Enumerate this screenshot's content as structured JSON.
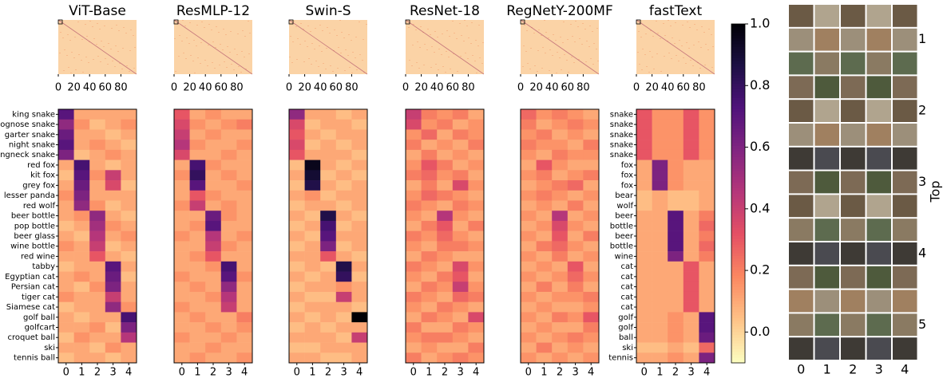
{
  "chart_data": [
    {
      "type": "heatmap",
      "title": "ViT-Base",
      "xticks": [
        0,
        20,
        40,
        60,
        80
      ],
      "xlim": [
        0,
        100
      ],
      "categories": [
        0,
        1,
        2,
        3,
        4
      ],
      "rows": [
        "king snake",
        "hognose snake",
        "garter snake",
        "night snake",
        "ringneck snake",
        "red fox",
        "kit fox",
        "grey fox",
        "lesser panda",
        "red wolf",
        "beer bottle",
        "pop bottle",
        "beer glass",
        "wine bottle",
        "red wine",
        "tabby",
        "Egyptian cat",
        "Persian cat",
        "tiger cat",
        "Siamese cat",
        "golf ball",
        "golfcart",
        "croquet ball",
        "ski",
        "tennis ball"
      ],
      "values": [
        [
          0.7,
          0.1,
          0.1,
          0.1,
          0.1
        ],
        [
          0.55,
          0.15,
          0.05,
          0.1,
          0.15
        ],
        [
          0.65,
          0.1,
          0.1,
          0.05,
          0.1
        ],
        [
          0.7,
          0.1,
          0.15,
          0.1,
          0.05
        ],
        [
          0.6,
          0.05,
          0.1,
          0.15,
          0.1
        ],
        [
          0.1,
          0.75,
          0.1,
          0.05,
          0.1
        ],
        [
          0.05,
          0.7,
          0.15,
          0.4,
          0.1
        ],
        [
          0.1,
          0.65,
          0.1,
          0.35,
          0.05
        ],
        [
          0.15,
          0.6,
          0.1,
          0.1,
          0.1
        ],
        [
          0.1,
          0.55,
          0.15,
          0.05,
          0.1
        ],
        [
          0.1,
          0.15,
          0.55,
          0.1,
          0.05
        ],
        [
          0.05,
          0.1,
          0.5,
          0.15,
          0.1
        ],
        [
          0.1,
          0.05,
          0.45,
          0.1,
          0.15
        ],
        [
          0.15,
          0.1,
          0.4,
          0.05,
          0.1
        ],
        [
          0.1,
          0.1,
          0.3,
          0.1,
          0.05
        ],
        [
          0.05,
          0.1,
          0.1,
          0.7,
          0.1
        ],
        [
          0.1,
          0.15,
          0.1,
          0.65,
          0.05
        ],
        [
          0.1,
          0.05,
          0.15,
          0.6,
          0.1
        ],
        [
          0.15,
          0.1,
          0.1,
          0.4,
          0.1
        ],
        [
          0.05,
          0.1,
          0.1,
          0.55,
          0.15
        ],
        [
          0.1,
          0.05,
          0.1,
          0.1,
          0.75
        ],
        [
          0.1,
          0.1,
          0.15,
          0.05,
          0.6
        ],
        [
          0.05,
          0.15,
          0.1,
          0.1,
          0.45
        ],
        [
          0.1,
          0.1,
          0.05,
          0.15,
          0.1
        ],
        [
          0.05,
          0.1,
          0.1,
          0.05,
          0.1
        ]
      ]
    },
    {
      "type": "heatmap",
      "title": "ResMLP-12",
      "xticks": [
        0,
        20,
        40,
        60,
        80
      ],
      "xlim": [
        0,
        100
      ],
      "categories": [
        0,
        1,
        2,
        3,
        4
      ],
      "values": [
        [
          0.3,
          0.1,
          0.15,
          0.1,
          0.1
        ],
        [
          0.35,
          0.15,
          0.1,
          0.15,
          0.2
        ],
        [
          0.4,
          0.1,
          0.15,
          0.1,
          0.1
        ],
        [
          0.45,
          0.15,
          0.1,
          0.1,
          0.15
        ],
        [
          0.35,
          0.1,
          0.1,
          0.15,
          0.1
        ],
        [
          0.1,
          0.75,
          0.15,
          0.1,
          0.1
        ],
        [
          0.15,
          0.8,
          0.1,
          0.15,
          0.1
        ],
        [
          0.1,
          0.7,
          0.1,
          0.1,
          0.15
        ],
        [
          0.1,
          0.3,
          0.15,
          0.1,
          0.1
        ],
        [
          0.15,
          0.4,
          0.1,
          0.15,
          0.1
        ],
        [
          0.1,
          0.1,
          0.65,
          0.15,
          0.1
        ],
        [
          0.1,
          0.15,
          0.7,
          0.1,
          0.1
        ],
        [
          0.15,
          0.1,
          0.45,
          0.1,
          0.15
        ],
        [
          0.1,
          0.1,
          0.4,
          0.15,
          0.1
        ],
        [
          0.1,
          0.15,
          0.3,
          0.1,
          0.1
        ],
        [
          0.1,
          0.1,
          0.15,
          0.75,
          0.1
        ],
        [
          0.15,
          0.1,
          0.1,
          0.7,
          0.15
        ],
        [
          0.1,
          0.15,
          0.1,
          0.55,
          0.1
        ],
        [
          0.1,
          0.1,
          0.15,
          0.45,
          0.1
        ],
        [
          0.15,
          0.1,
          0.1,
          0.4,
          0.1
        ],
        [
          0.1,
          0.15,
          0.1,
          0.1,
          0.2
        ],
        [
          0.1,
          0.1,
          0.15,
          0.1,
          0.15
        ],
        [
          0.15,
          0.1,
          0.1,
          0.15,
          0.1
        ],
        [
          0.1,
          0.1,
          0.15,
          0.1,
          0.1
        ],
        [
          0.1,
          0.15,
          0.1,
          0.1,
          0.15
        ]
      ]
    },
    {
      "type": "heatmap",
      "title": "Swin-S",
      "xticks": [
        0,
        20,
        40,
        60,
        80
      ],
      "xlim": [
        0,
        100
      ],
      "categories": [
        0,
        1,
        2,
        3,
        4
      ],
      "values": [
        [
          0.55,
          0.1,
          0.1,
          0.05,
          0.1
        ],
        [
          0.35,
          0.05,
          0.1,
          0.1,
          0.05
        ],
        [
          0.3,
          0.1,
          0.05,
          0.1,
          0.1
        ],
        [
          0.35,
          0.05,
          0.1,
          0.05,
          0.1
        ],
        [
          0.3,
          0.1,
          0.1,
          0.1,
          0.05
        ],
        [
          0.05,
          0.95,
          0.1,
          0.05,
          0.1
        ],
        [
          0.1,
          0.9,
          0.05,
          0.1,
          0.05
        ],
        [
          0.05,
          0.85,
          0.1,
          0.05,
          0.1
        ],
        [
          0.1,
          0.15,
          0.05,
          0.1,
          0.1
        ],
        [
          0.05,
          0.1,
          0.1,
          0.05,
          0.1
        ],
        [
          0.1,
          0.05,
          0.85,
          0.1,
          0.05
        ],
        [
          0.05,
          0.1,
          0.75,
          0.05,
          0.1
        ],
        [
          0.1,
          0.05,
          0.7,
          0.1,
          0.1
        ],
        [
          0.05,
          0.1,
          0.6,
          0.05,
          0.1
        ],
        [
          0.1,
          0.1,
          0.3,
          0.1,
          0.05
        ],
        [
          0.05,
          0.1,
          0.05,
          0.85,
          0.1
        ],
        [
          0.1,
          0.05,
          0.1,
          0.8,
          0.05
        ],
        [
          0.05,
          0.1,
          0.1,
          0.15,
          0.1
        ],
        [
          0.1,
          0.05,
          0.05,
          0.4,
          0.1
        ],
        [
          0.05,
          0.1,
          0.1,
          0.1,
          0.05
        ],
        [
          0.1,
          0.05,
          0.1,
          0.05,
          1.0
        ],
        [
          0.05,
          0.1,
          0.05,
          0.1,
          0.1
        ],
        [
          0.1,
          0.1,
          0.1,
          0.05,
          0.4
        ],
        [
          0.05,
          0.05,
          0.1,
          0.1,
          0.1
        ],
        [
          0.1,
          0.1,
          0.05,
          0.05,
          0.1
        ]
      ]
    },
    {
      "type": "heatmap",
      "title": "ResNet-18",
      "xticks": [
        0,
        20,
        40,
        60,
        80
      ],
      "xlim": [
        0,
        100
      ],
      "categories": [
        0,
        1,
        2,
        3,
        4
      ],
      "values": [
        [
          0.4,
          0.2,
          0.15,
          0.2,
          0.1
        ],
        [
          0.35,
          0.15,
          0.2,
          0.1,
          0.15
        ],
        [
          0.15,
          0.25,
          0.1,
          0.2,
          0.15
        ],
        [
          0.2,
          0.1,
          0.15,
          0.1,
          0.2
        ],
        [
          0.1,
          0.2,
          0.1,
          0.15,
          0.1
        ],
        [
          0.15,
          0.3,
          0.2,
          0.1,
          0.15
        ],
        [
          0.2,
          0.25,
          0.15,
          0.2,
          0.1
        ],
        [
          0.1,
          0.2,
          0.1,
          0.35,
          0.15
        ],
        [
          0.15,
          0.25,
          0.2,
          0.15,
          0.1
        ],
        [
          0.2,
          0.15,
          0.1,
          0.2,
          0.15
        ],
        [
          0.15,
          0.1,
          0.45,
          0.15,
          0.1
        ],
        [
          0.1,
          0.2,
          0.3,
          0.1,
          0.2
        ],
        [
          0.2,
          0.15,
          0.25,
          0.15,
          0.1
        ],
        [
          0.15,
          0.1,
          0.2,
          0.2,
          0.15
        ],
        [
          0.1,
          0.2,
          0.15,
          0.1,
          0.1
        ],
        [
          0.2,
          0.15,
          0.1,
          0.35,
          0.15
        ],
        [
          0.15,
          0.1,
          0.2,
          0.3,
          0.1
        ],
        [
          0.1,
          0.2,
          0.15,
          0.4,
          0.15
        ],
        [
          0.2,
          0.15,
          0.1,
          0.25,
          0.2
        ],
        [
          0.15,
          0.1,
          0.2,
          0.15,
          0.1
        ],
        [
          0.1,
          0.2,
          0.15,
          0.1,
          0.35
        ],
        [
          0.2,
          0.1,
          0.1,
          0.2,
          0.15
        ],
        [
          0.15,
          0.2,
          0.2,
          0.15,
          0.1
        ],
        [
          0.1,
          0.15,
          0.1,
          0.1,
          0.2
        ],
        [
          0.2,
          0.1,
          0.15,
          0.2,
          0.15
        ]
      ]
    },
    {
      "type": "heatmap",
      "title": "RegNetY-200MF",
      "xticks": [
        0,
        20,
        40,
        60,
        80
      ],
      "xlim": [
        0,
        100
      ],
      "categories": [
        0,
        1,
        2,
        3,
        4
      ],
      "values": [
        [
          0.25,
          0.15,
          0.2,
          0.15,
          0.1
        ],
        [
          0.2,
          0.1,
          0.15,
          0.2,
          0.15
        ],
        [
          0.15,
          0.2,
          0.1,
          0.15,
          0.1
        ],
        [
          0.2,
          0.15,
          0.15,
          0.1,
          0.2
        ],
        [
          0.15,
          0.1,
          0.2,
          0.15,
          0.15
        ],
        [
          0.1,
          0.3,
          0.15,
          0.1,
          0.1
        ],
        [
          0.15,
          0.2,
          0.1,
          0.15,
          0.2
        ],
        [
          0.1,
          0.15,
          0.2,
          0.25,
          0.1
        ],
        [
          0.15,
          0.2,
          0.15,
          0.1,
          0.15
        ],
        [
          0.1,
          0.15,
          0.1,
          0.2,
          0.1
        ],
        [
          0.15,
          0.1,
          0.45,
          0.1,
          0.15
        ],
        [
          0.1,
          0.15,
          0.35,
          0.15,
          0.1
        ],
        [
          0.15,
          0.1,
          0.3,
          0.1,
          0.2
        ],
        [
          0.1,
          0.2,
          0.25,
          0.15,
          0.1
        ],
        [
          0.15,
          0.1,
          0.2,
          0.1,
          0.15
        ],
        [
          0.1,
          0.15,
          0.1,
          0.3,
          0.1
        ],
        [
          0.15,
          0.1,
          0.15,
          0.25,
          0.15
        ],
        [
          0.1,
          0.2,
          0.1,
          0.2,
          0.1
        ],
        [
          0.15,
          0.1,
          0.15,
          0.15,
          0.2
        ],
        [
          0.1,
          0.15,
          0.1,
          0.1,
          0.15
        ],
        [
          0.15,
          0.1,
          0.2,
          0.15,
          0.3
        ],
        [
          0.1,
          0.15,
          0.1,
          0.1,
          0.2
        ],
        [
          0.15,
          0.1,
          0.15,
          0.2,
          0.15
        ],
        [
          0.1,
          0.2,
          0.1,
          0.15,
          0.1
        ],
        [
          0.15,
          0.1,
          0.15,
          0.1,
          0.15
        ]
      ]
    },
    {
      "type": "heatmap",
      "title": "fastText",
      "xticks": [
        0,
        20,
        40,
        60,
        80
      ],
      "xlim": [
        0,
        100
      ],
      "categories": [
        0,
        1,
        2,
        3,
        4
      ],
      "rows": [
        "snake",
        "snake",
        "snake",
        "snake",
        "snake",
        "fox",
        "fox",
        "fox",
        "bear",
        "wolf",
        "beer",
        "bottle",
        "beer",
        "bottle",
        "wine",
        "cat",
        "cat",
        "cat",
        "cat",
        "cat",
        "golf",
        "golf",
        "ball",
        "ski",
        "tennis"
      ],
      "values": [
        [
          0.3,
          0.15,
          0.15,
          0.3,
          0.15
        ],
        [
          0.3,
          0.15,
          0.15,
          0.3,
          0.15
        ],
        [
          0.3,
          0.15,
          0.15,
          0.3,
          0.15
        ],
        [
          0.3,
          0.15,
          0.15,
          0.3,
          0.15
        ],
        [
          0.3,
          0.15,
          0.15,
          0.3,
          0.15
        ],
        [
          0.1,
          0.6,
          0.15,
          0.1,
          0.1
        ],
        [
          0.1,
          0.6,
          0.15,
          0.1,
          0.1
        ],
        [
          0.1,
          0.6,
          0.15,
          0.1,
          0.1
        ],
        [
          0.05,
          0.1,
          0.05,
          0.05,
          0.1
        ],
        [
          0.05,
          0.1,
          0.05,
          0.05,
          0.1
        ],
        [
          0.1,
          0.1,
          0.7,
          0.1,
          0.2
        ],
        [
          0.1,
          0.1,
          0.7,
          0.1,
          0.25
        ],
        [
          0.1,
          0.1,
          0.7,
          0.1,
          0.2
        ],
        [
          0.1,
          0.1,
          0.7,
          0.1,
          0.25
        ],
        [
          0.1,
          0.1,
          0.6,
          0.1,
          0.2
        ],
        [
          0.1,
          0.1,
          0.1,
          0.3,
          0.1
        ],
        [
          0.1,
          0.1,
          0.1,
          0.3,
          0.1
        ],
        [
          0.1,
          0.1,
          0.1,
          0.3,
          0.1
        ],
        [
          0.1,
          0.1,
          0.1,
          0.3,
          0.1
        ],
        [
          0.1,
          0.1,
          0.1,
          0.3,
          0.1
        ],
        [
          0.1,
          0.1,
          0.15,
          0.1,
          0.7
        ],
        [
          0.1,
          0.1,
          0.15,
          0.1,
          0.7
        ],
        [
          0.1,
          0.1,
          0.15,
          0.1,
          0.65
        ],
        [
          0.05,
          0.05,
          0.1,
          0.05,
          0.25
        ],
        [
          0.1,
          0.1,
          0.15,
          0.1,
          0.6
        ]
      ]
    }
  ],
  "colorbar": {
    "colormap": "magma_r",
    "clim": [
      -0.1,
      1.0
    ],
    "ticks": [
      {
        "value": 0,
        "label": "0.0"
      },
      0.2,
      0.4,
      0.6,
      0.8,
      {
        "value": 1,
        "label": "1.0"
      }
    ]
  },
  "image_grid": {
    "ylabel": "Top",
    "row_labels": [
      "1",
      "2",
      "3",
      "4",
      "5"
    ],
    "col_labels": [
      "0",
      "1",
      "2",
      "3",
      "4"
    ]
  }
}
